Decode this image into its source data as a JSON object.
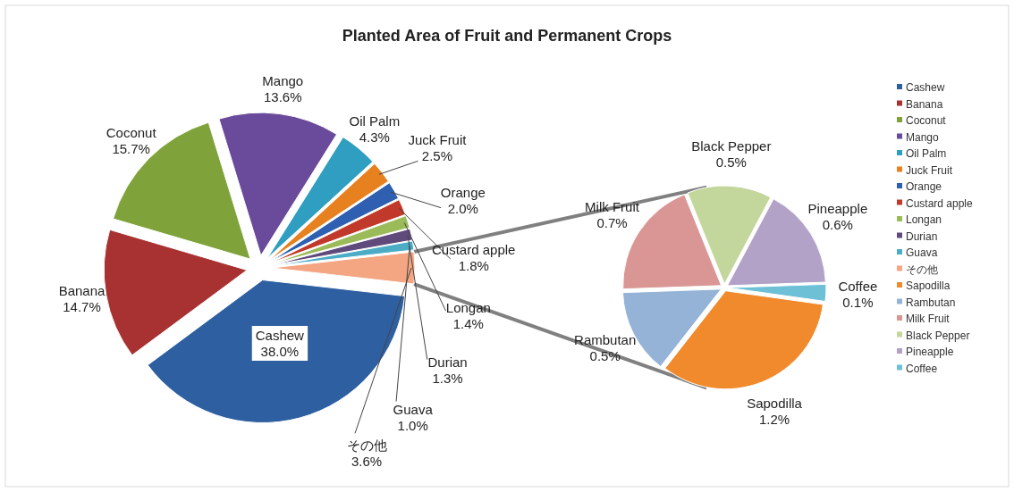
{
  "chart_data": [
    {
      "type": "pie",
      "title": "Planted Area of Fruit and Permanent Crops",
      "legend": "right",
      "categories": [
        "Cashew",
        "Banana",
        "Coconut",
        "Mango",
        "Oil Palm",
        "Juck Fruit",
        "Orange",
        "Custard apple",
        "Longan",
        "Durian",
        "Guava",
        "その他"
      ],
      "values": [
        38.0,
        14.7,
        15.7,
        13.6,
        4.3,
        2.5,
        2.0,
        1.8,
        1.4,
        1.3,
        1.0,
        3.6
      ],
      "value_labels": [
        "38.0%",
        "14.7%",
        "15.7%",
        "13.6%",
        "4.3%",
        "2.5%",
        "2.0%",
        "1.8%",
        "1.4%",
        "1.3%",
        "1.0%",
        "3.6%"
      ],
      "colors": [
        "#2e5fa1",
        "#a83232",
        "#7fa33a",
        "#6a4a9a",
        "#2f9ec0",
        "#e7811f",
        "#2f5fb0",
        "#c0392b",
        "#9bbb59",
        "#604a7b",
        "#4bacc6",
        "#f4a582"
      ]
    },
    {
      "type": "pie",
      "legend": "right",
      "categories": [
        "Sapodilla",
        "Rambutan",
        "Milk Fruit",
        "Black Pepper",
        "Pineapple",
        "Coffee"
      ],
      "values": [
        1.2,
        0.5,
        0.7,
        0.5,
        0.6,
        0.1
      ],
      "value_labels": [
        "1.2%",
        "0.5%",
        "0.7%",
        "0.5%",
        "0.6%",
        "0.1%"
      ],
      "colors": [
        "#f08a2c",
        "#95b3d7",
        "#d99694",
        "#c3d69b",
        "#b3a2c7",
        "#6dc0d5"
      ]
    }
  ]
}
